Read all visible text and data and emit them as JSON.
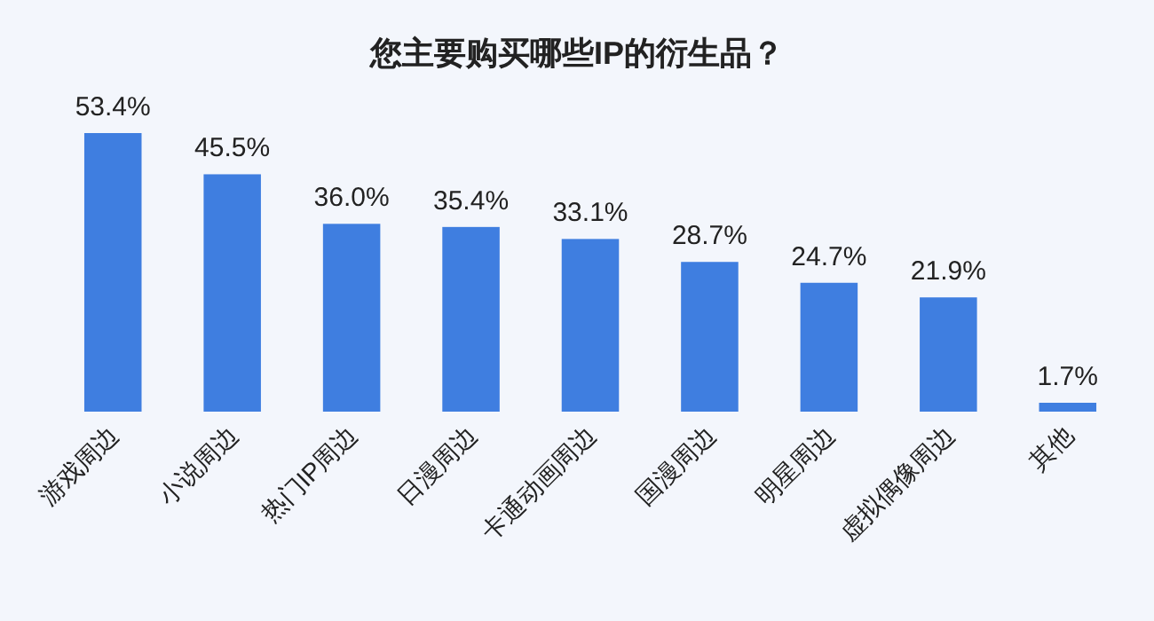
{
  "chart_data": {
    "type": "bar",
    "title": "您主要购买哪些IP的衍生品？",
    "categories": [
      "游戏周边",
      "小说周边",
      "热门IP周边",
      "日漫周边",
      "卡通动画周边",
      "国漫周边",
      "明星周边",
      "虚拟偶像周边",
      "其他"
    ],
    "values": [
      53.4,
      45.5,
      36.0,
      35.4,
      33.1,
      28.7,
      24.7,
      21.9,
      1.7
    ],
    "value_labels": [
      "53.4%",
      "45.5%",
      "36.0%",
      "35.4%",
      "33.1%",
      "28.7%",
      "24.7%",
      "21.9%",
      "1.7%"
    ],
    "color": "#3f7ee0"
  }
}
